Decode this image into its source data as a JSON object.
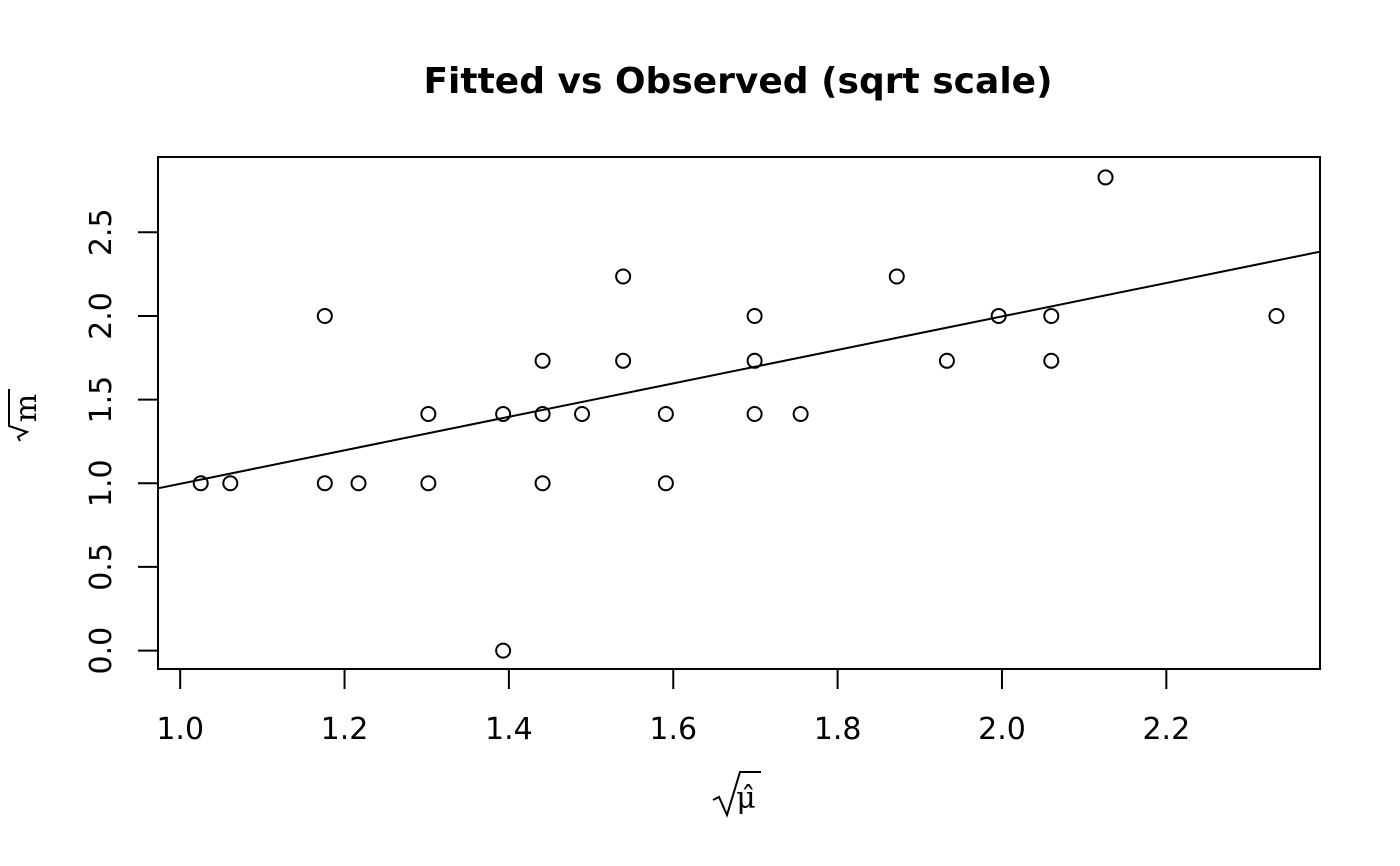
{
  "chart_data": {
    "type": "scatter",
    "title": "Fitted vs Observed (sqrt scale)",
    "xlabel": "μ̂",
    "ylabel": "m",
    "xlabel_sqrt": true,
    "ylabel_sqrt": true,
    "xlim": [
      0.973,
      2.387
    ],
    "ylim": [
      -0.11,
      2.95
    ],
    "x_ticks": [
      1.0,
      1.2,
      1.4,
      1.6,
      1.8,
      2.0,
      2.2
    ],
    "x_tick_labels": [
      "1.0",
      "1.2",
      "1.4",
      "1.6",
      "1.8",
      "2.0",
      "2.2"
    ],
    "y_ticks": [
      0.0,
      0.5,
      1.0,
      1.5,
      2.0,
      2.5
    ],
    "y_tick_labels": [
      "0.0",
      "0.5",
      "1.0",
      "1.5",
      "2.0",
      "2.5"
    ],
    "grid": false,
    "points": [
      {
        "x": 1.025,
        "y": 1.0
      },
      {
        "x": 1.061,
        "y": 1.0
      },
      {
        "x": 1.176,
        "y": 1.0
      },
      {
        "x": 1.176,
        "y": 2.0
      },
      {
        "x": 1.217,
        "y": 1.0
      },
      {
        "x": 1.302,
        "y": 1.0
      },
      {
        "x": 1.302,
        "y": 1.414
      },
      {
        "x": 1.393,
        "y": 0.0
      },
      {
        "x": 1.393,
        "y": 1.414
      },
      {
        "x": 1.441,
        "y": 1.0
      },
      {
        "x": 1.441,
        "y": 1.414
      },
      {
        "x": 1.441,
        "y": 1.732
      },
      {
        "x": 1.489,
        "y": 1.414
      },
      {
        "x": 1.539,
        "y": 1.732
      },
      {
        "x": 1.539,
        "y": 2.236
      },
      {
        "x": 1.591,
        "y": 1.0
      },
      {
        "x": 1.591,
        "y": 1.414
      },
      {
        "x": 1.699,
        "y": 1.414
      },
      {
        "x": 1.699,
        "y": 1.732
      },
      {
        "x": 1.699,
        "y": 2.0
      },
      {
        "x": 1.755,
        "y": 1.414
      },
      {
        "x": 1.872,
        "y": 2.236
      },
      {
        "x": 1.933,
        "y": 1.732
      },
      {
        "x": 1.996,
        "y": 2.0
      },
      {
        "x": 2.06,
        "y": 1.732
      },
      {
        "x": 2.06,
        "y": 2.0
      },
      {
        "x": 2.126,
        "y": 2.828
      },
      {
        "x": 2.334,
        "y": 2.0
      }
    ],
    "fit_line": {
      "intercept": -0.003,
      "slope": 1.0
    }
  }
}
